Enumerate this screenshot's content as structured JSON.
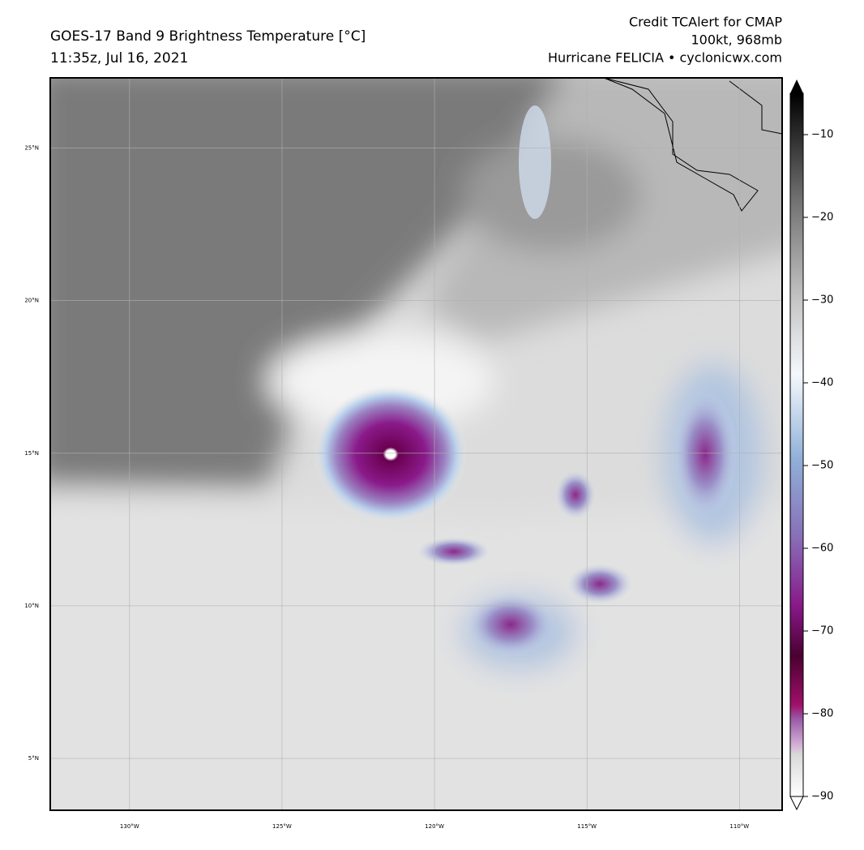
{
  "header": {
    "title": "GOES-17 Band 9 Brightness Temperature [°C]",
    "time": "11:35z, Jul 16, 2021",
    "credit": [
      "Credit TCAlert for CMAP",
      "100kt, 968mb",
      "Hurricane FELICIA • cyclonicwx.com"
    ]
  },
  "map": {
    "lat_lim": [
      3.3,
      27.3
    ],
    "lon_lim": [
      -132.6,
      -108.6
    ],
    "lat_ticks": [
      {
        "value": 25,
        "label": "25°N"
      },
      {
        "value": 20,
        "label": "20°N"
      },
      {
        "value": 15,
        "label": "15°N"
      },
      {
        "value": 10,
        "label": "10°N"
      },
      {
        "value": 5,
        "label": "5°N"
      }
    ],
    "lon_ticks": [
      {
        "value": -130,
        "label": "130°W"
      },
      {
        "value": -125,
        "label": "125°W"
      },
      {
        "value": -120,
        "label": "120°W"
      },
      {
        "value": -115,
        "label": "115°W"
      },
      {
        "value": -110,
        "label": "110°W"
      }
    ]
  },
  "colorbar": {
    "lim": [
      -90,
      -5
    ],
    "ticks": [
      {
        "value": -10,
        "label": "−10"
      },
      {
        "value": -20,
        "label": "−20"
      },
      {
        "value": -30,
        "label": "−30"
      },
      {
        "value": -40,
        "label": "−40"
      },
      {
        "value": -50,
        "label": "−50"
      },
      {
        "value": -60,
        "label": "−60"
      },
      {
        "value": -70,
        "label": "−70"
      },
      {
        "value": -80,
        "label": "−80"
      },
      {
        "value": -90,
        "label": "−90"
      }
    ]
  }
}
